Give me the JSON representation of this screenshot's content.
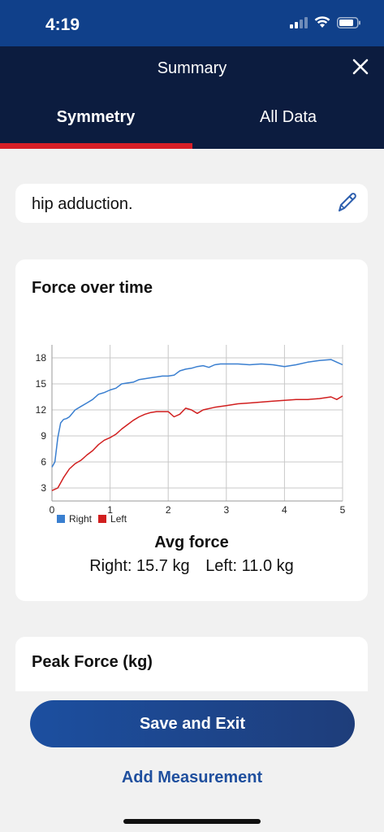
{
  "status_bar": {
    "time": "4:19"
  },
  "header": {
    "title": "Summary",
    "tabs": [
      {
        "label": "Symmetry",
        "active": true
      },
      {
        "label": "All Data",
        "active": false
      }
    ],
    "accent_color": "#d71f27"
  },
  "note": {
    "text": "hip adduction."
  },
  "force_card": {
    "title": "Force over time",
    "avg_title": "Avg force",
    "avg_right": "Right: 15.7 kg",
    "avg_left": "Left: 11.0 kg"
  },
  "chart_data": {
    "type": "line",
    "title": "Force over time",
    "xlabel": "",
    "ylabel": "",
    "xlim": [
      0,
      5
    ],
    "ylim": [
      1.5,
      19.5
    ],
    "x_ticks": [
      "0",
      "1",
      "2",
      "3",
      "4",
      "5"
    ],
    "y_ticks": [
      "3",
      "6",
      "9",
      "12",
      "15",
      "18"
    ],
    "grid": true,
    "legend_position": "bottom-left",
    "series": [
      {
        "name": "Right",
        "color": "#3a7fd0",
        "x": [
          0,
          0.05,
          0.1,
          0.15,
          0.2,
          0.25,
          0.3,
          0.4,
          0.5,
          0.6,
          0.7,
          0.8,
          0.9,
          1.0,
          1.1,
          1.2,
          1.3,
          1.4,
          1.5,
          1.6,
          1.7,
          1.8,
          1.9,
          2.0,
          2.1,
          2.2,
          2.3,
          2.4,
          2.5,
          2.6,
          2.7,
          2.8,
          2.9,
          3.0,
          3.2,
          3.4,
          3.6,
          3.8,
          4.0,
          4.2,
          4.4,
          4.6,
          4.8,
          4.9,
          5.0
        ],
        "y": [
          5.4,
          6.0,
          8.8,
          10.5,
          10.9,
          11.0,
          11.2,
          12.0,
          12.4,
          12.8,
          13.2,
          13.8,
          14.0,
          14.3,
          14.5,
          15.0,
          15.1,
          15.2,
          15.5,
          15.6,
          15.7,
          15.8,
          15.9,
          15.9,
          16.0,
          16.5,
          16.7,
          16.8,
          17.0,
          17.1,
          16.9,
          17.2,
          17.3,
          17.3,
          17.3,
          17.2,
          17.3,
          17.2,
          17.0,
          17.2,
          17.5,
          17.7,
          17.8,
          17.5,
          17.2
        ]
      },
      {
        "name": "Left",
        "color": "#d11f1f",
        "x": [
          0,
          0.1,
          0.2,
          0.3,
          0.4,
          0.5,
          0.6,
          0.7,
          0.8,
          0.9,
          1.0,
          1.1,
          1.2,
          1.3,
          1.4,
          1.5,
          1.6,
          1.7,
          1.8,
          1.9,
          2.0,
          2.1,
          2.2,
          2.3,
          2.4,
          2.5,
          2.6,
          2.8,
          3.0,
          3.2,
          3.4,
          3.6,
          3.8,
          4.0,
          4.2,
          4.4,
          4.6,
          4.8,
          4.9,
          5.0
        ],
        "y": [
          2.7,
          3.0,
          4.2,
          5.2,
          5.8,
          6.2,
          6.8,
          7.3,
          8.0,
          8.5,
          8.8,
          9.2,
          9.8,
          10.3,
          10.8,
          11.2,
          11.5,
          11.7,
          11.8,
          11.8,
          11.8,
          11.2,
          11.5,
          12.2,
          12.0,
          11.6,
          12.0,
          12.3,
          12.5,
          12.7,
          12.8,
          12.9,
          13.0,
          13.1,
          13.2,
          13.2,
          13.3,
          13.5,
          13.2,
          13.6
        ]
      }
    ]
  },
  "peak_card": {
    "title": "Peak Force (kg)"
  },
  "actions": {
    "save_label": "Save and Exit",
    "add_label": "Add Measurement"
  }
}
